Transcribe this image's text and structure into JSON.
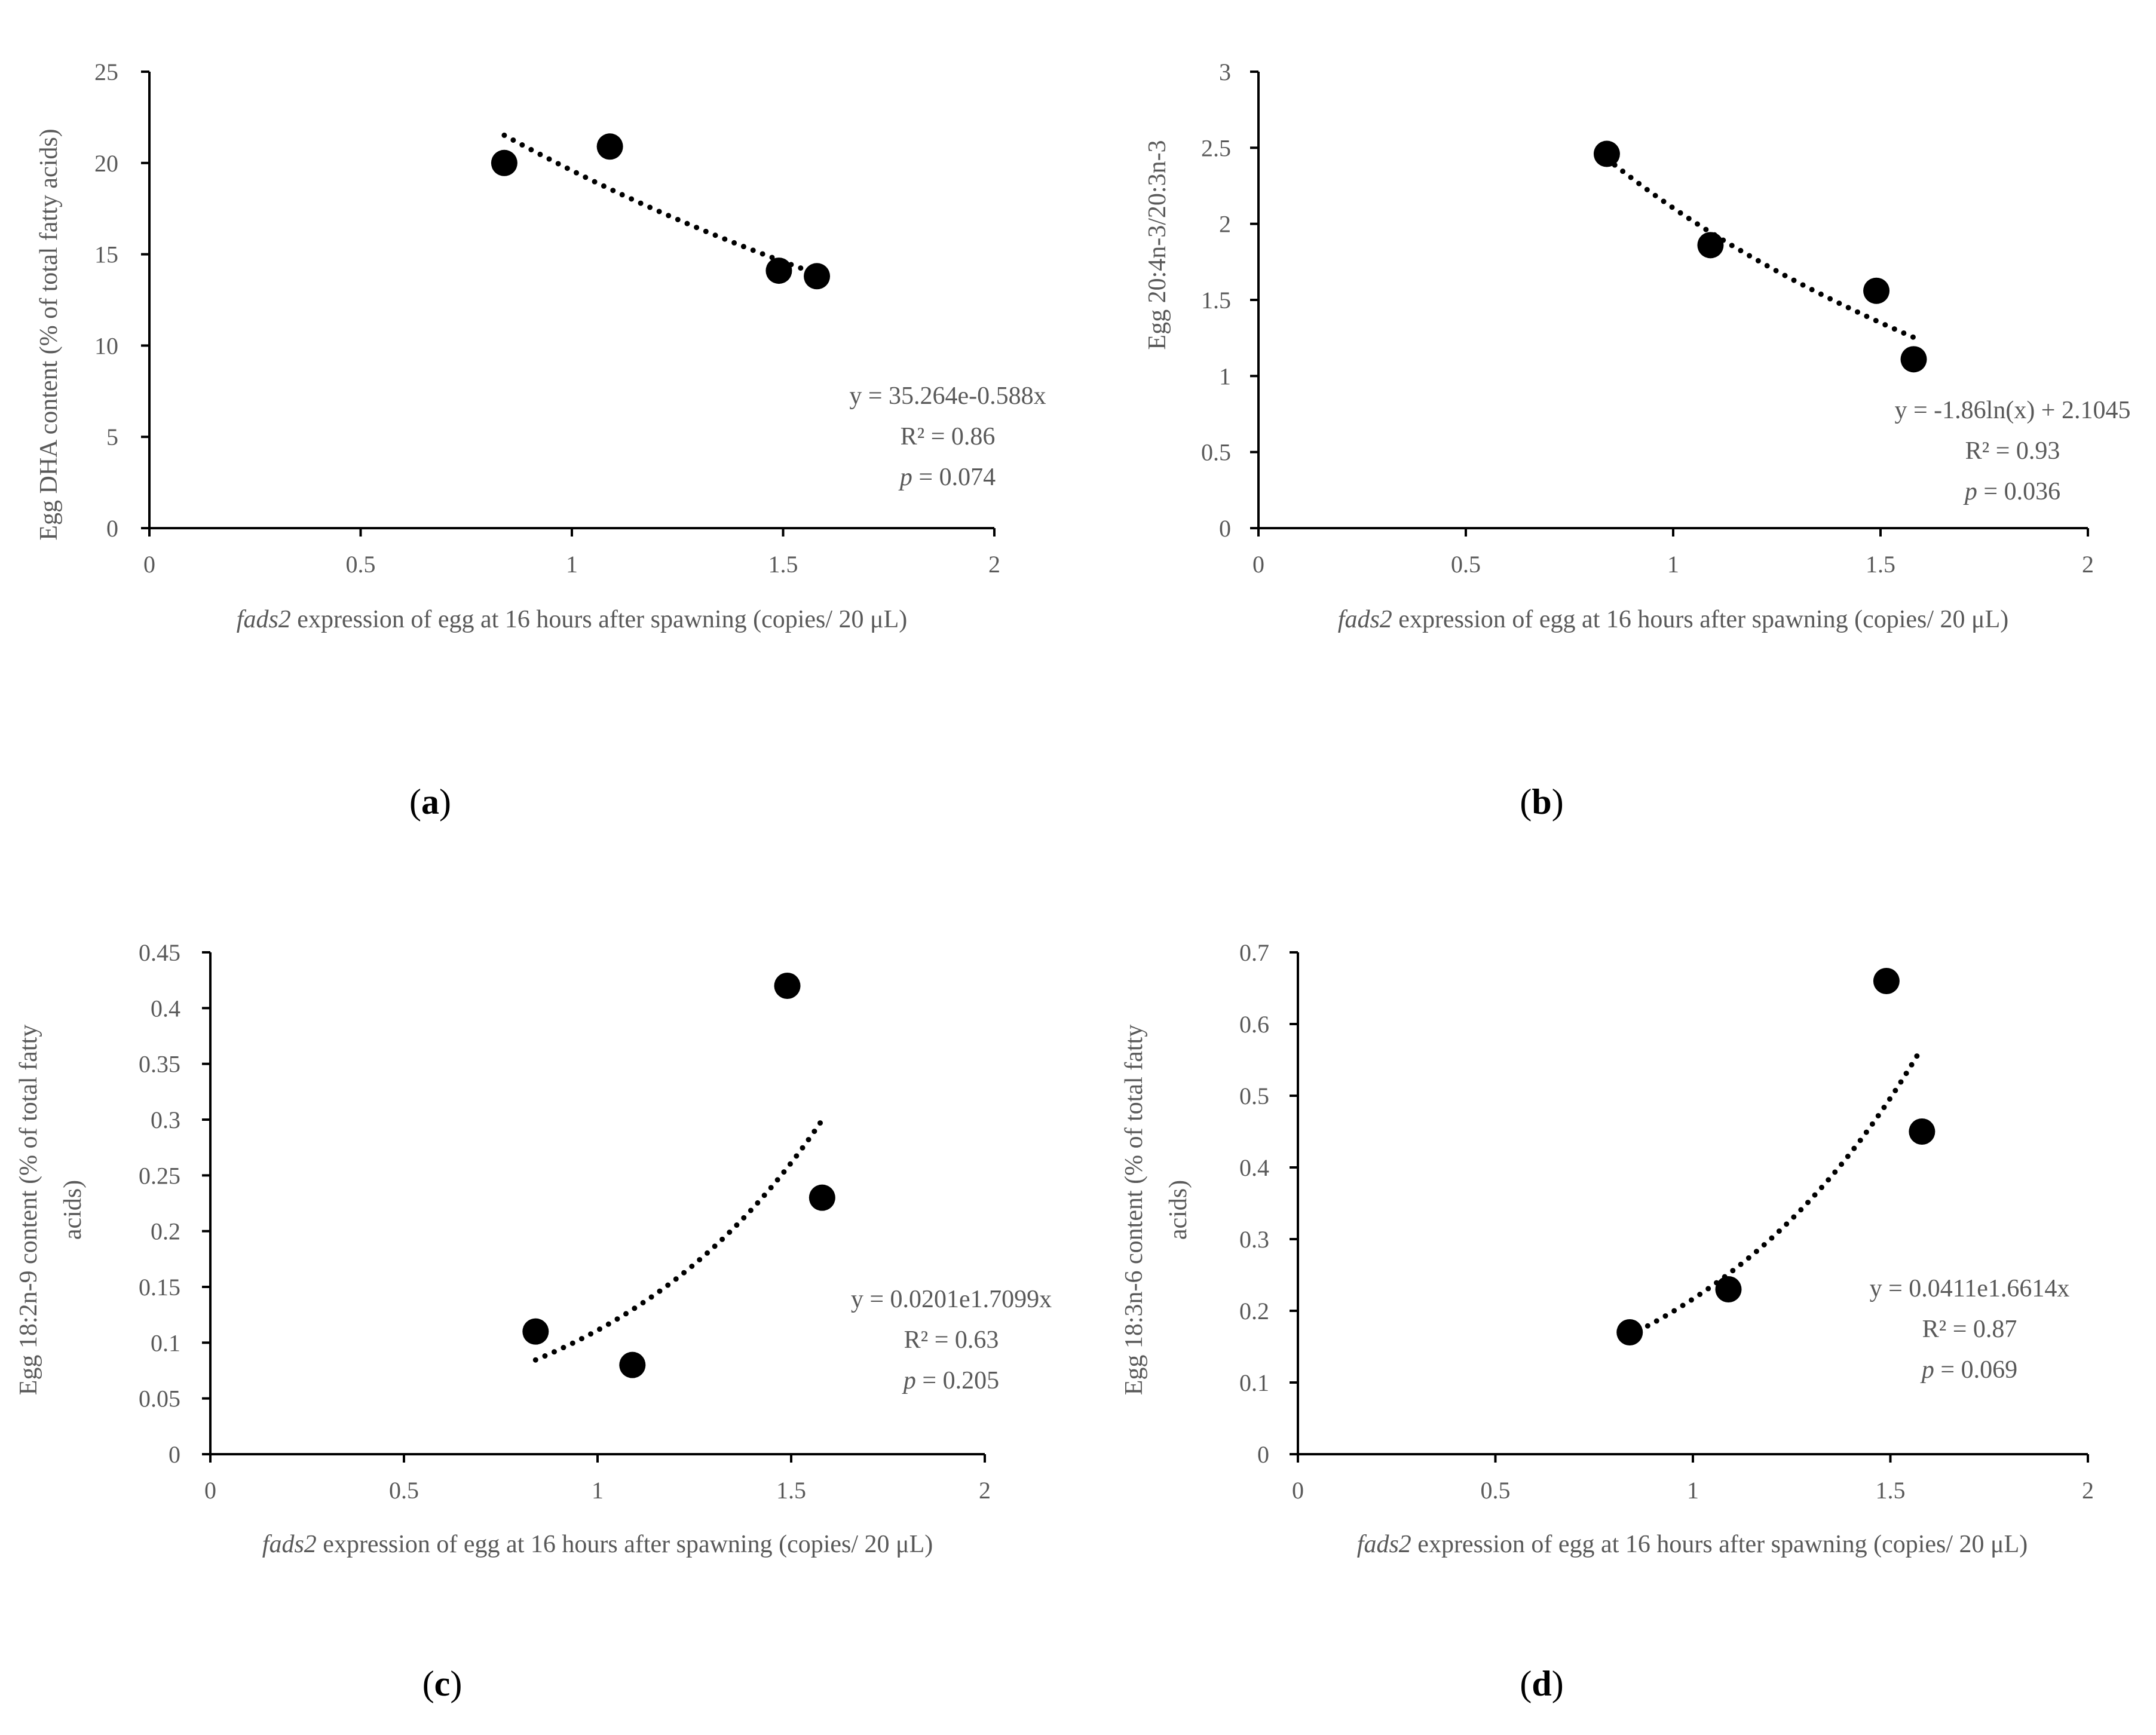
{
  "figure": {
    "colors": {
      "axis": "#000000",
      "text": "#595959",
      "marker": "#000000",
      "trend": "#000000"
    },
    "panel_labels": [
      {
        "open": "(",
        "letter": "a",
        "close": ")"
      },
      {
        "open": "(",
        "letter": "b",
        "close": ")"
      },
      {
        "open": "(",
        "letter": "c",
        "close": ")"
      },
      {
        "open": "(",
        "letter": "d",
        "close": ")"
      }
    ]
  },
  "chart_data": [
    {
      "type": "scatter",
      "id": "a",
      "x": [
        0.84,
        1.09,
        1.49,
        1.58
      ],
      "y": [
        20.0,
        20.9,
        14.1,
        13.8
      ],
      "xlim": [
        0,
        2
      ],
      "ylim": [
        0,
        25
      ],
      "xticks": [
        "0",
        "0.5",
        "1",
        "1.5",
        "2"
      ],
      "yticks": [
        "0",
        "5",
        "10",
        "15",
        "20",
        "25"
      ],
      "xlabel_italic": "fads2",
      "xlabel_rest": " expression of egg at 16 hours after spawning (copies/ 20 μL)",
      "ylabel": [
        "Egg DHA content (% of total fatty acids)"
      ],
      "trendline": {
        "kind": "exponential",
        "a": 35.264,
        "b": -0.588,
        "x_range": [
          0.84,
          1.58
        ]
      },
      "annotation": {
        "equation": "y = 35.264e-0.588x",
        "r2": "R² = 0.86",
        "p_italic": "p",
        "p_rest": " = 0.074"
      }
    },
    {
      "type": "scatter",
      "id": "b",
      "x": [
        0.84,
        1.09,
        1.49,
        1.58
      ],
      "y": [
        2.46,
        1.86,
        1.56,
        1.11
      ],
      "xlim": [
        0,
        2
      ],
      "ylim": [
        0,
        3
      ],
      "xticks": [
        "0",
        "0.5",
        "1",
        "1.5",
        "2"
      ],
      "yticks": [
        "0",
        "0.5",
        "1",
        "1.5",
        "2",
        "2.5",
        "3"
      ],
      "xlabel_italic": "fads2",
      "xlabel_rest": " expression of egg at 16 hours after spawning (copies/ 20 μL)",
      "ylabel": [
        "Egg 20:4n-3/20:3n-3"
      ],
      "trendline": {
        "kind": "log",
        "a": -1.86,
        "b": 2.1045,
        "x_range": [
          0.84,
          1.58
        ]
      },
      "annotation": {
        "equation": "y = -1.86ln(x) + 2.1045",
        "r2": "R² = 0.93",
        "p_italic": "p",
        "p_rest": " = 0.036"
      }
    },
    {
      "type": "scatter",
      "id": "c",
      "x": [
        0.84,
        1.09,
        1.49,
        1.58
      ],
      "y": [
        0.11,
        0.08,
        0.42,
        0.23
      ],
      "xlim": [
        0,
        2
      ],
      "ylim": [
        0,
        0.45
      ],
      "xticks": [
        "0",
        "0.5",
        "1",
        "1.5",
        "2"
      ],
      "yticks": [
        "0",
        "0.05",
        "0.1",
        "0.15",
        "0.2",
        "0.25",
        "0.3",
        "0.35",
        "0.4",
        "0.45"
      ],
      "xlabel_italic": "fads2",
      "xlabel_rest": " expression of egg at 16 hours after spawning (copies/ 20 μL)",
      "ylabel": [
        "Egg 18:2n-9 content (% of total fatty",
        "acids)"
      ],
      "trendline": {
        "kind": "exponential",
        "a": 0.0201,
        "b": 1.7099,
        "x_range": [
          0.84,
          1.58
        ]
      },
      "annotation": {
        "equation": "y = 0.0201e1.7099x",
        "r2": "R² = 0.63",
        "p_italic": "p",
        "p_rest": " = 0.205"
      }
    },
    {
      "type": "scatter",
      "id": "d",
      "x": [
        0.84,
        1.09,
        1.49,
        1.58
      ],
      "y": [
        0.17,
        0.23,
        0.66,
        0.45
      ],
      "xlim": [
        0,
        2
      ],
      "ylim": [
        0,
        0.7
      ],
      "xticks": [
        "0",
        "0.5",
        "1",
        "1.5",
        "2"
      ],
      "yticks": [
        "0",
        "0.1",
        "0.2",
        "0.3",
        "0.4",
        "0.5",
        "0.6",
        "0.7"
      ],
      "xlabel_italic": "fads2",
      "xlabel_rest": " expression of egg at 16 hours after spawning (copies/ 20 μL)",
      "ylabel": [
        "Egg 18:3n-6 content (% of total fatty",
        "acids)"
      ],
      "trendline": {
        "kind": "exponential",
        "a": 0.0411,
        "b": 1.6614,
        "x_range": [
          0.84,
          1.58
        ]
      },
      "annotation": {
        "equation": "y = 0.0411e1.6614x",
        "r2": "R² = 0.87",
        "p_italic": "p",
        "p_rest": " = 0.069"
      }
    }
  ]
}
